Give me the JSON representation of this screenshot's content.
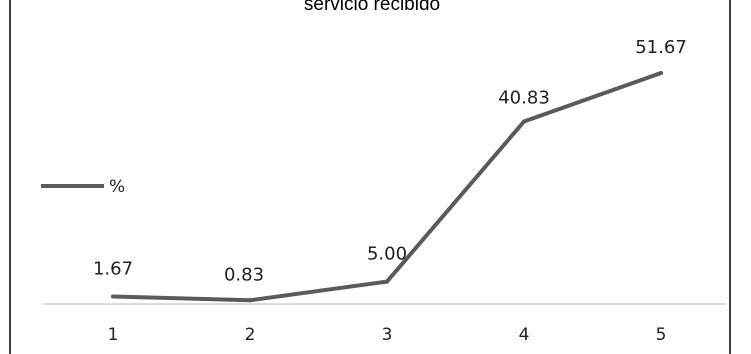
{
  "chart_data": {
    "type": "line",
    "title": "servicio recibido",
    "categories": [
      "1",
      "2",
      "3",
      "4",
      "5"
    ],
    "series": [
      {
        "name": "%",
        "values": [
          1.67,
          0.83,
          5.0,
          40.83,
          51.67
        ],
        "labels": [
          "1.67",
          "0.83",
          "5.00",
          "40.83",
          "51.67"
        ],
        "color": "#5a5a5a"
      }
    ],
    "xlabel": "",
    "ylabel": "",
    "ylim": [
      0,
      60
    ],
    "grid": false,
    "legend_position": "left"
  }
}
